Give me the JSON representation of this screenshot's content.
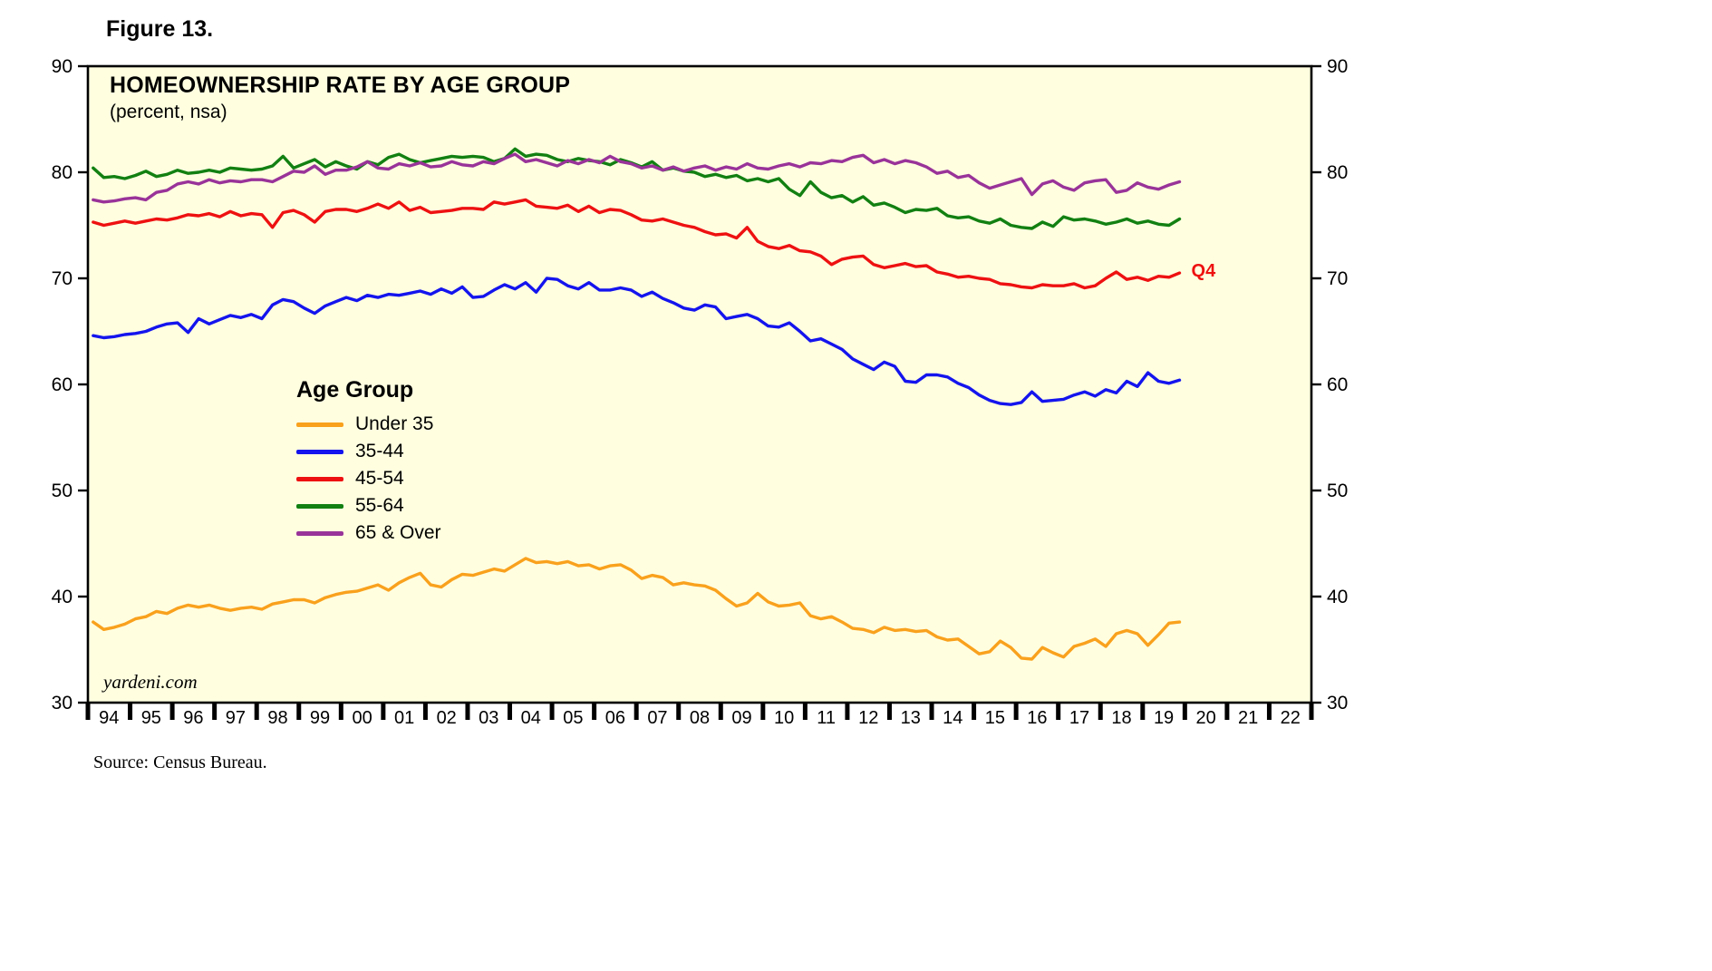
{
  "figure_label": "Figure 13.",
  "chart": {
    "title": "HOMEOWNERSHIP RATE BY AGE GROUP",
    "subtitle": "(percent, nsa)",
    "legend_heading": "Age Group",
    "watermark": "yardeni.com",
    "end_label": "Q4",
    "end_label_color": "#EE1111",
    "plot_background": "#FFFFE0",
    "axis_color": "#000000"
  },
  "source": "Source: Census Bureau.",
  "chart_data": {
    "type": "line",
    "title": "HOMEOWNERSHIP RATE BY AGE GROUP",
    "subtitle": "(percent, nsa)",
    "x": {
      "start_year": 1994,
      "axis_end_year": 2022,
      "frequency": "quarterly",
      "last_point": "2019 Q4"
    },
    "x_tick_labels": [
      "94",
      "95",
      "96",
      "97",
      "98",
      "99",
      "00",
      "01",
      "02",
      "03",
      "04",
      "05",
      "06",
      "07",
      "08",
      "09",
      "10",
      "11",
      "12",
      "13",
      "14",
      "15",
      "16",
      "17",
      "18",
      "19",
      "20",
      "21",
      "22"
    ],
    "ylim": [
      30,
      90
    ],
    "yticks": [
      30,
      40,
      50,
      60,
      70,
      80,
      90
    ],
    "grid": false,
    "legend": {
      "position": "inside-left",
      "heading": "Age Group"
    },
    "series": [
      {
        "name": "Under 35",
        "color": "#F9A11D",
        "values": [
          37.6,
          36.9,
          37.1,
          37.4,
          37.9,
          38.1,
          38.6,
          38.4,
          38.9,
          39.2,
          39.0,
          39.2,
          38.9,
          38.7,
          38.9,
          39.0,
          38.8,
          39.3,
          39.5,
          39.7,
          39.7,
          39.4,
          39.9,
          40.2,
          40.4,
          40.5,
          40.8,
          41.1,
          40.6,
          41.3,
          41.8,
          42.2,
          41.1,
          40.9,
          41.6,
          42.1,
          42.0,
          42.3,
          42.6,
          42.4,
          43.0,
          43.6,
          43.2,
          43.3,
          43.1,
          43.3,
          42.9,
          43.0,
          42.6,
          42.9,
          43.0,
          42.5,
          41.7,
          42.0,
          41.8,
          41.1,
          41.3,
          41.1,
          41.0,
          40.6,
          39.8,
          39.1,
          39.4,
          40.3,
          39.5,
          39.1,
          39.2,
          39.4,
          38.2,
          37.9,
          38.1,
          37.6,
          37.0,
          36.9,
          36.6,
          37.1,
          36.8,
          36.9,
          36.7,
          36.8,
          36.2,
          35.9,
          36.0,
          35.3,
          34.6,
          34.8,
          35.8,
          35.2,
          34.2,
          34.1,
          35.2,
          34.7,
          34.3,
          35.3,
          35.6,
          36.0,
          35.3,
          36.5,
          36.8,
          36.5,
          35.4,
          36.4,
          37.5,
          37.6
        ]
      },
      {
        "name": "35-44",
        "color": "#1414EE",
        "values": [
          64.6,
          64.4,
          64.5,
          64.7,
          64.8,
          65.0,
          65.4,
          65.7,
          65.8,
          64.9,
          66.2,
          65.7,
          66.1,
          66.5,
          66.3,
          66.6,
          66.2,
          67.5,
          68.0,
          67.8,
          67.2,
          66.7,
          67.4,
          67.8,
          68.2,
          67.9,
          68.4,
          68.2,
          68.5,
          68.4,
          68.6,
          68.8,
          68.5,
          69.0,
          68.6,
          69.2,
          68.2,
          68.3,
          68.9,
          69.4,
          69.0,
          69.6,
          68.7,
          70.0,
          69.9,
          69.3,
          69.0,
          69.6,
          68.9,
          68.9,
          69.1,
          68.9,
          68.3,
          68.7,
          68.1,
          67.7,
          67.2,
          67.0,
          67.5,
          67.3,
          66.2,
          66.4,
          66.6,
          66.2,
          65.5,
          65.4,
          65.8,
          65.0,
          64.1,
          64.3,
          63.8,
          63.3,
          62.4,
          61.9,
          61.4,
          62.1,
          61.7,
          60.3,
          60.2,
          60.9,
          60.9,
          60.7,
          60.1,
          59.7,
          59.0,
          58.5,
          58.2,
          58.1,
          58.3,
          59.3,
          58.4,
          58.5,
          58.6,
          59.0,
          59.3,
          58.9,
          59.5,
          59.2,
          60.3,
          59.8,
          61.1,
          60.3,
          60.1,
          60.4
        ]
      },
      {
        "name": "45-54",
        "color": "#EE1111",
        "values": [
          75.3,
          75.0,
          75.2,
          75.4,
          75.2,
          75.4,
          75.6,
          75.5,
          75.7,
          76.0,
          75.9,
          76.1,
          75.8,
          76.3,
          75.9,
          76.1,
          76.0,
          74.8,
          76.2,
          76.4,
          76.0,
          75.3,
          76.3,
          76.5,
          76.5,
          76.3,
          76.6,
          77.0,
          76.6,
          77.2,
          76.4,
          76.7,
          76.2,
          76.3,
          76.4,
          76.6,
          76.6,
          76.5,
          77.2,
          77.0,
          77.2,
          77.4,
          76.8,
          76.7,
          76.6,
          76.9,
          76.3,
          76.8,
          76.2,
          76.5,
          76.4,
          76.0,
          75.5,
          75.4,
          75.6,
          75.3,
          75.0,
          74.8,
          74.4,
          74.1,
          74.2,
          73.8,
          74.8,
          73.5,
          73.0,
          72.8,
          73.1,
          72.6,
          72.5,
          72.1,
          71.3,
          71.8,
          72.0,
          72.1,
          71.3,
          71.0,
          71.2,
          71.4,
          71.1,
          71.2,
          70.6,
          70.4,
          70.1,
          70.2,
          70.0,
          69.9,
          69.5,
          69.4,
          69.2,
          69.1,
          69.4,
          69.3,
          69.3,
          69.5,
          69.1,
          69.3,
          70.0,
          70.6,
          69.9,
          70.1,
          69.8,
          70.2,
          70.1,
          70.5
        ]
      },
      {
        "name": "55-64",
        "color": "#128012",
        "values": [
          80.4,
          79.5,
          79.6,
          79.4,
          79.7,
          80.1,
          79.6,
          79.8,
          80.2,
          79.9,
          80.0,
          80.2,
          80.0,
          80.4,
          80.3,
          80.2,
          80.3,
          80.6,
          81.5,
          80.4,
          80.8,
          81.2,
          80.5,
          81.0,
          80.6,
          80.3,
          81.0,
          80.7,
          81.4,
          81.7,
          81.2,
          80.9,
          81.1,
          81.3,
          81.5,
          81.4,
          81.5,
          81.4,
          81.0,
          81.3,
          82.2,
          81.5,
          81.7,
          81.6,
          81.2,
          81.0,
          81.3,
          81.1,
          81.0,
          80.7,
          81.2,
          80.9,
          80.5,
          81.0,
          80.2,
          80.4,
          80.1,
          80.0,
          79.6,
          79.8,
          79.5,
          79.7,
          79.2,
          79.4,
          79.1,
          79.4,
          78.4,
          77.8,
          79.1,
          78.1,
          77.6,
          77.8,
          77.2,
          77.7,
          76.9,
          77.1,
          76.7,
          76.2,
          76.5,
          76.4,
          76.6,
          75.9,
          75.7,
          75.8,
          75.4,
          75.2,
          75.6,
          75.0,
          74.8,
          74.7,
          75.3,
          74.9,
          75.8,
          75.5,
          75.6,
          75.4,
          75.1,
          75.3,
          75.6,
          75.2,
          75.4,
          75.1,
          75.0,
          75.6
        ]
      },
      {
        "name": "65 & Over",
        "color": "#993399",
        "values": [
          77.4,
          77.2,
          77.3,
          77.5,
          77.6,
          77.4,
          78.1,
          78.3,
          78.9,
          79.1,
          78.9,
          79.3,
          79.0,
          79.2,
          79.1,
          79.3,
          79.3,
          79.1,
          79.6,
          80.1,
          80.0,
          80.6,
          79.8,
          80.2,
          80.2,
          80.5,
          81.0,
          80.4,
          80.3,
          80.8,
          80.6,
          80.9,
          80.5,
          80.6,
          81.0,
          80.7,
          80.6,
          81.0,
          80.8,
          81.3,
          81.7,
          81.0,
          81.2,
          80.9,
          80.6,
          81.1,
          80.8,
          81.2,
          80.9,
          81.5,
          81.0,
          80.8,
          80.4,
          80.6,
          80.2,
          80.5,
          80.1,
          80.4,
          80.6,
          80.2,
          80.5,
          80.3,
          80.8,
          80.4,
          80.3,
          80.6,
          80.8,
          80.5,
          80.9,
          80.8,
          81.1,
          81.0,
          81.4,
          81.6,
          80.9,
          81.2,
          80.8,
          81.1,
          80.9,
          80.5,
          79.9,
          80.1,
          79.5,
          79.7,
          79.0,
          78.5,
          78.8,
          79.1,
          79.4,
          77.9,
          78.9,
          79.2,
          78.6,
          78.3,
          79.0,
          79.2,
          79.3,
          78.1,
          78.3,
          79.0,
          78.6,
          78.4,
          78.8,
          79.1
        ]
      }
    ]
  }
}
